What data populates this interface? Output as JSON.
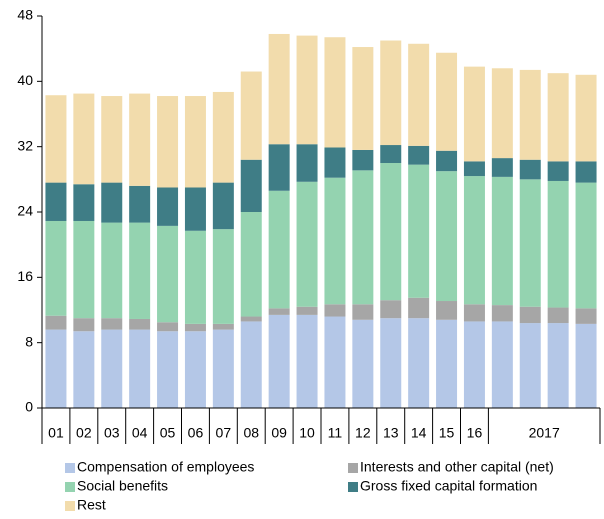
{
  "chart_data": {
    "type": "stacked_bar",
    "categories": [
      "01",
      "02",
      "03",
      "04",
      "05",
      "06",
      "07",
      "08",
      "09",
      "10",
      "11",
      "12",
      "13",
      "14",
      "15",
      "16",
      null,
      null,
      null,
      null
    ],
    "x_group_label": "2017",
    "series": [
      {
        "name": "Compensation of employees",
        "color": "#b4c7e7",
        "values": [
          9.6,
          9.4,
          9.6,
          9.6,
          9.4,
          9.4,
          9.6,
          10.6,
          11.4,
          11.4,
          11.2,
          10.8,
          11.0,
          11.0,
          10.8,
          10.6,
          10.6,
          10.4,
          10.4,
          10.3
        ]
      },
      {
        "name": "Interests and other capital (net)",
        "color": "#a6a6a6",
        "values": [
          1.7,
          1.6,
          1.4,
          1.3,
          1.1,
          0.9,
          0.7,
          0.6,
          0.8,
          1.0,
          1.5,
          1.9,
          2.2,
          2.5,
          2.3,
          2.1,
          2.0,
          2.0,
          1.9,
          1.9
        ]
      },
      {
        "name": "Social benefits",
        "color": "#94d3b0",
        "values": [
          11.6,
          11.9,
          11.7,
          11.8,
          11.8,
          11.4,
          11.6,
          12.8,
          14.4,
          15.3,
          15.5,
          16.4,
          16.8,
          16.3,
          15.9,
          15.7,
          15.7,
          15.6,
          15.5,
          15.4
        ]
      },
      {
        "name": "Gross fixed capital formation",
        "color": "#3f7d86",
        "values": [
          4.7,
          4.5,
          4.9,
          4.5,
          4.7,
          5.3,
          5.7,
          6.4,
          5.7,
          4.6,
          3.7,
          2.5,
          2.2,
          2.3,
          2.5,
          1.8,
          2.3,
          2.4,
          2.4,
          2.6
        ]
      },
      {
        "name": "Rest",
        "color": "#f2dcac",
        "values": [
          10.7,
          11.1,
          10.6,
          11.3,
          11.2,
          11.2,
          11.1,
          10.8,
          13.5,
          13.3,
          13.5,
          12.6,
          12.8,
          12.5,
          12.0,
          11.6,
          11.0,
          11.0,
          10.8,
          10.6
        ]
      }
    ],
    "ylim": [
      0,
      48
    ],
    "yticks": [
      0,
      8,
      16,
      24,
      32,
      40,
      48
    ]
  }
}
